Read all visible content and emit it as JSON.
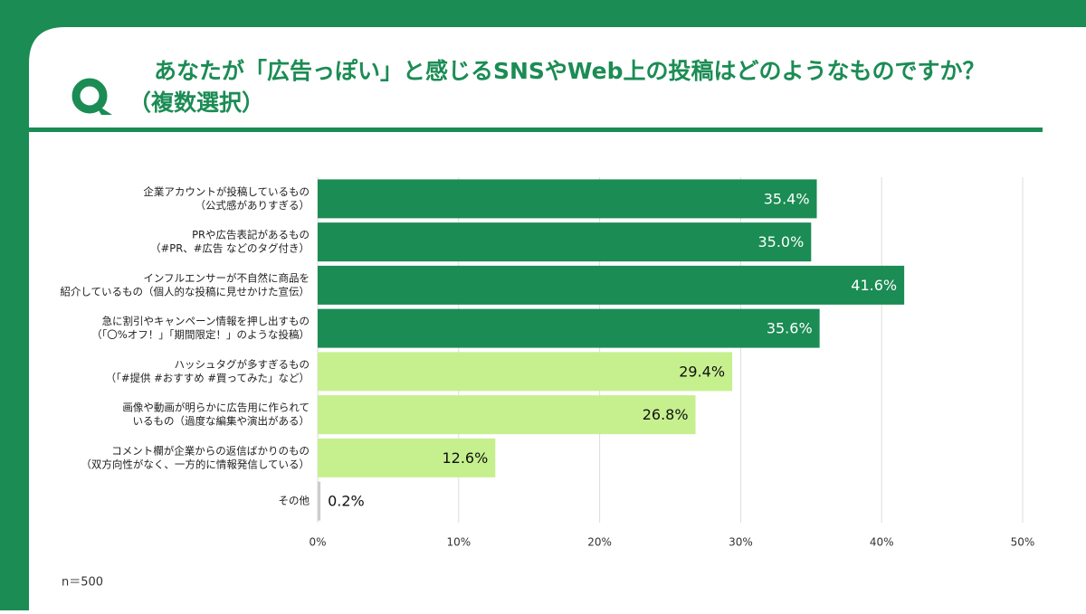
{
  "header": {
    "title": [
      "あなたが「広告っぽい」と感じるSNSやWeb上の投稿はどのようなものですか？",
      "（複数選択）"
    ]
  },
  "chart_data": {
    "type": "bar",
    "orientation": "horizontal",
    "categories": [
      [
        "企業アカウントが投稿しているもの",
        "（公式感がありすぎる）"
      ],
      [
        "PRや広告表記があるもの",
        "（#PR、#広告 などのタグ付き）"
      ],
      [
        "インフルエンサーが不自然に商品を",
        "紹介しているもの（個人的な投稿に見せかけた宣伝）"
      ],
      [
        "急に割引やキャンペーン情報を押し出すもの",
        "（「〇%オフ！」「期間限定！」のような投稿）"
      ],
      [
        "ハッシュタグが多すぎるもの",
        "（「#提供 #おすすめ #買ってみた」など）"
      ],
      [
        "画像や動画が明らかに広告用に作られて",
        "いるもの（過度な編集や演出がある）"
      ],
      [
        "コメント欄が企業からの返信ばかりのもの",
        "（双方向性がなく、一方的に情報発信している）"
      ],
      [
        "その他"
      ]
    ],
    "values": [
      35.4,
      35.0,
      41.6,
      35.6,
      29.4,
      26.8,
      12.6,
      0.2
    ],
    "value_labels": [
      "35.4%",
      "35.0%",
      "41.6%",
      "35.6%",
      "29.4%",
      "26.8%",
      "12.6%",
      "0.2%"
    ],
    "colors": [
      "#1b8c54",
      "#1b8c54",
      "#1b8c54",
      "#1b8c54",
      "#c6f08e",
      "#c6f08e",
      "#c6f08e",
      "#cccccc"
    ],
    "xlim": [
      0,
      50
    ],
    "xticks": [
      {
        "value": 0,
        "label": "0%"
      },
      {
        "value": 10,
        "label": "10%"
      },
      {
        "value": 20,
        "label": "20%"
      },
      {
        "value": 30,
        "label": "30%"
      },
      {
        "value": 40,
        "label": "40%"
      },
      {
        "value": 50,
        "label": "50%"
      }
    ],
    "grid": true
  },
  "footer": {
    "note": "n＝500"
  }
}
